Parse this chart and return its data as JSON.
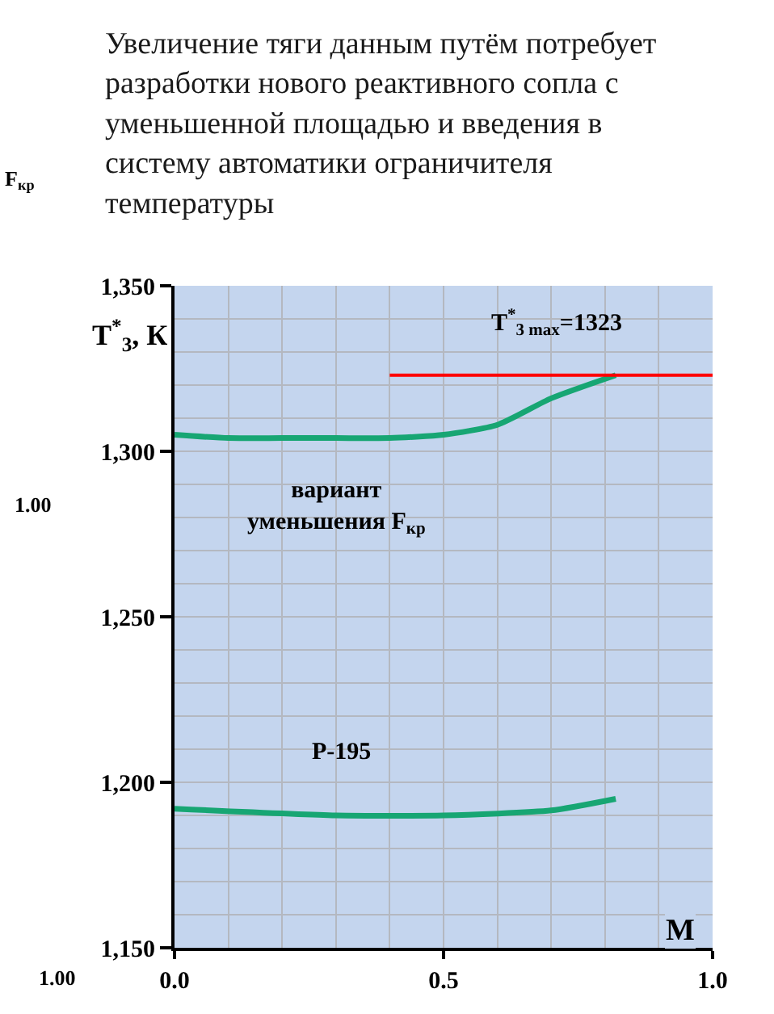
{
  "chart_data": [
    {
      "type": "other",
      "annotations": [
        "F$_{кр}$",
        "1.00"
      ]
    },
    {
      "type": "other",
      "annotations": [
        "1.00"
      ]
    },
    {
      "type": "line",
      "annotations": [
        "Увеличение тяги данным путём потребует разработки нового реактивного сопла с уменьшенной площадью и введения в систему автоматики ограничителя температуры"
      ],
      "ylabel": "T$^{*}$$_{3}$, К",
      "xlabel": "M",
      "xlim": [
        0,
        1
      ],
      "ylim": [
        1150,
        1350
      ],
      "xticks": [
        {
          "value": 0,
          "label": "0.0"
        },
        {
          "value": 0.1,
          "label": null
        },
        {
          "value": 0.2,
          "label": null
        },
        {
          "value": 0.3,
          "label": null
        },
        {
          "value": 0.4,
          "label": null
        },
        {
          "value": 0.5,
          "label": "0.5"
        },
        {
          "value": 0.6,
          "label": null
        },
        {
          "value": 0.7,
          "label": null
        },
        {
          "value": 0.8,
          "label": null
        },
        {
          "value": 0.9,
          "label": null
        },
        {
          "value": 1,
          "label": "1.0"
        }
      ],
      "yticks": [
        {
          "value": 1150,
          "label": "1,150"
        },
        {
          "value": 1160,
          "label": null
        },
        {
          "value": 1170,
          "label": null
        },
        {
          "value": 1180,
          "label": null
        },
        {
          "value": 1190,
          "label": null
        },
        {
          "value": 1200,
          "label": "1,200"
        },
        {
          "value": 1210,
          "label": null
        },
        {
          "value": 1220,
          "label": null
        },
        {
          "value": 1230,
          "label": null
        },
        {
          "value": 1240,
          "label": null
        },
        {
          "value": 1250,
          "label": "1,250"
        },
        {
          "value": 1260,
          "label": null
        },
        {
          "value": 1270,
          "label": null
        },
        {
          "value": 1280,
          "label": null
        },
        {
          "value": 1290,
          "label": null
        },
        {
          "value": 1300,
          "label": "1,300"
        },
        {
          "value": 1310,
          "label": null
        },
        {
          "value": 1320,
          "label": null
        },
        {
          "value": 1330,
          "label": null
        },
        {
          "value": 1340,
          "label": null
        },
        {
          "value": 1350,
          "label": "1,350"
        }
      ],
      "grid": true,
      "legend": false,
      "series": [
        {
          "name": "вариант уменьшения F$_{кр}$",
          "color": "#17a673",
          "x": [
            0,
            0.1,
            0.2,
            0.3,
            0.4,
            0.5,
            0.6,
            0.7,
            0.82
          ],
          "values": [
            1305,
            1304,
            1304,
            1304,
            1304,
            1305,
            1308,
            1316,
            1323
          ]
        },
        {
          "name": "Р-195",
          "color": "#17a673",
          "x": [
            0,
            0.3,
            0.5,
            0.7,
            0.82
          ],
          "values": [
            1192,
            1190,
            1190,
            1191.5,
            1195
          ]
        },
        {
          "name": "T$^{*}$$_{3 max}$=1323",
          "color": "#ff0000",
          "x": [
            0.4,
            1
          ],
          "values": [
            1323,
            1323
          ]
        }
      ]
    }
  ]
}
